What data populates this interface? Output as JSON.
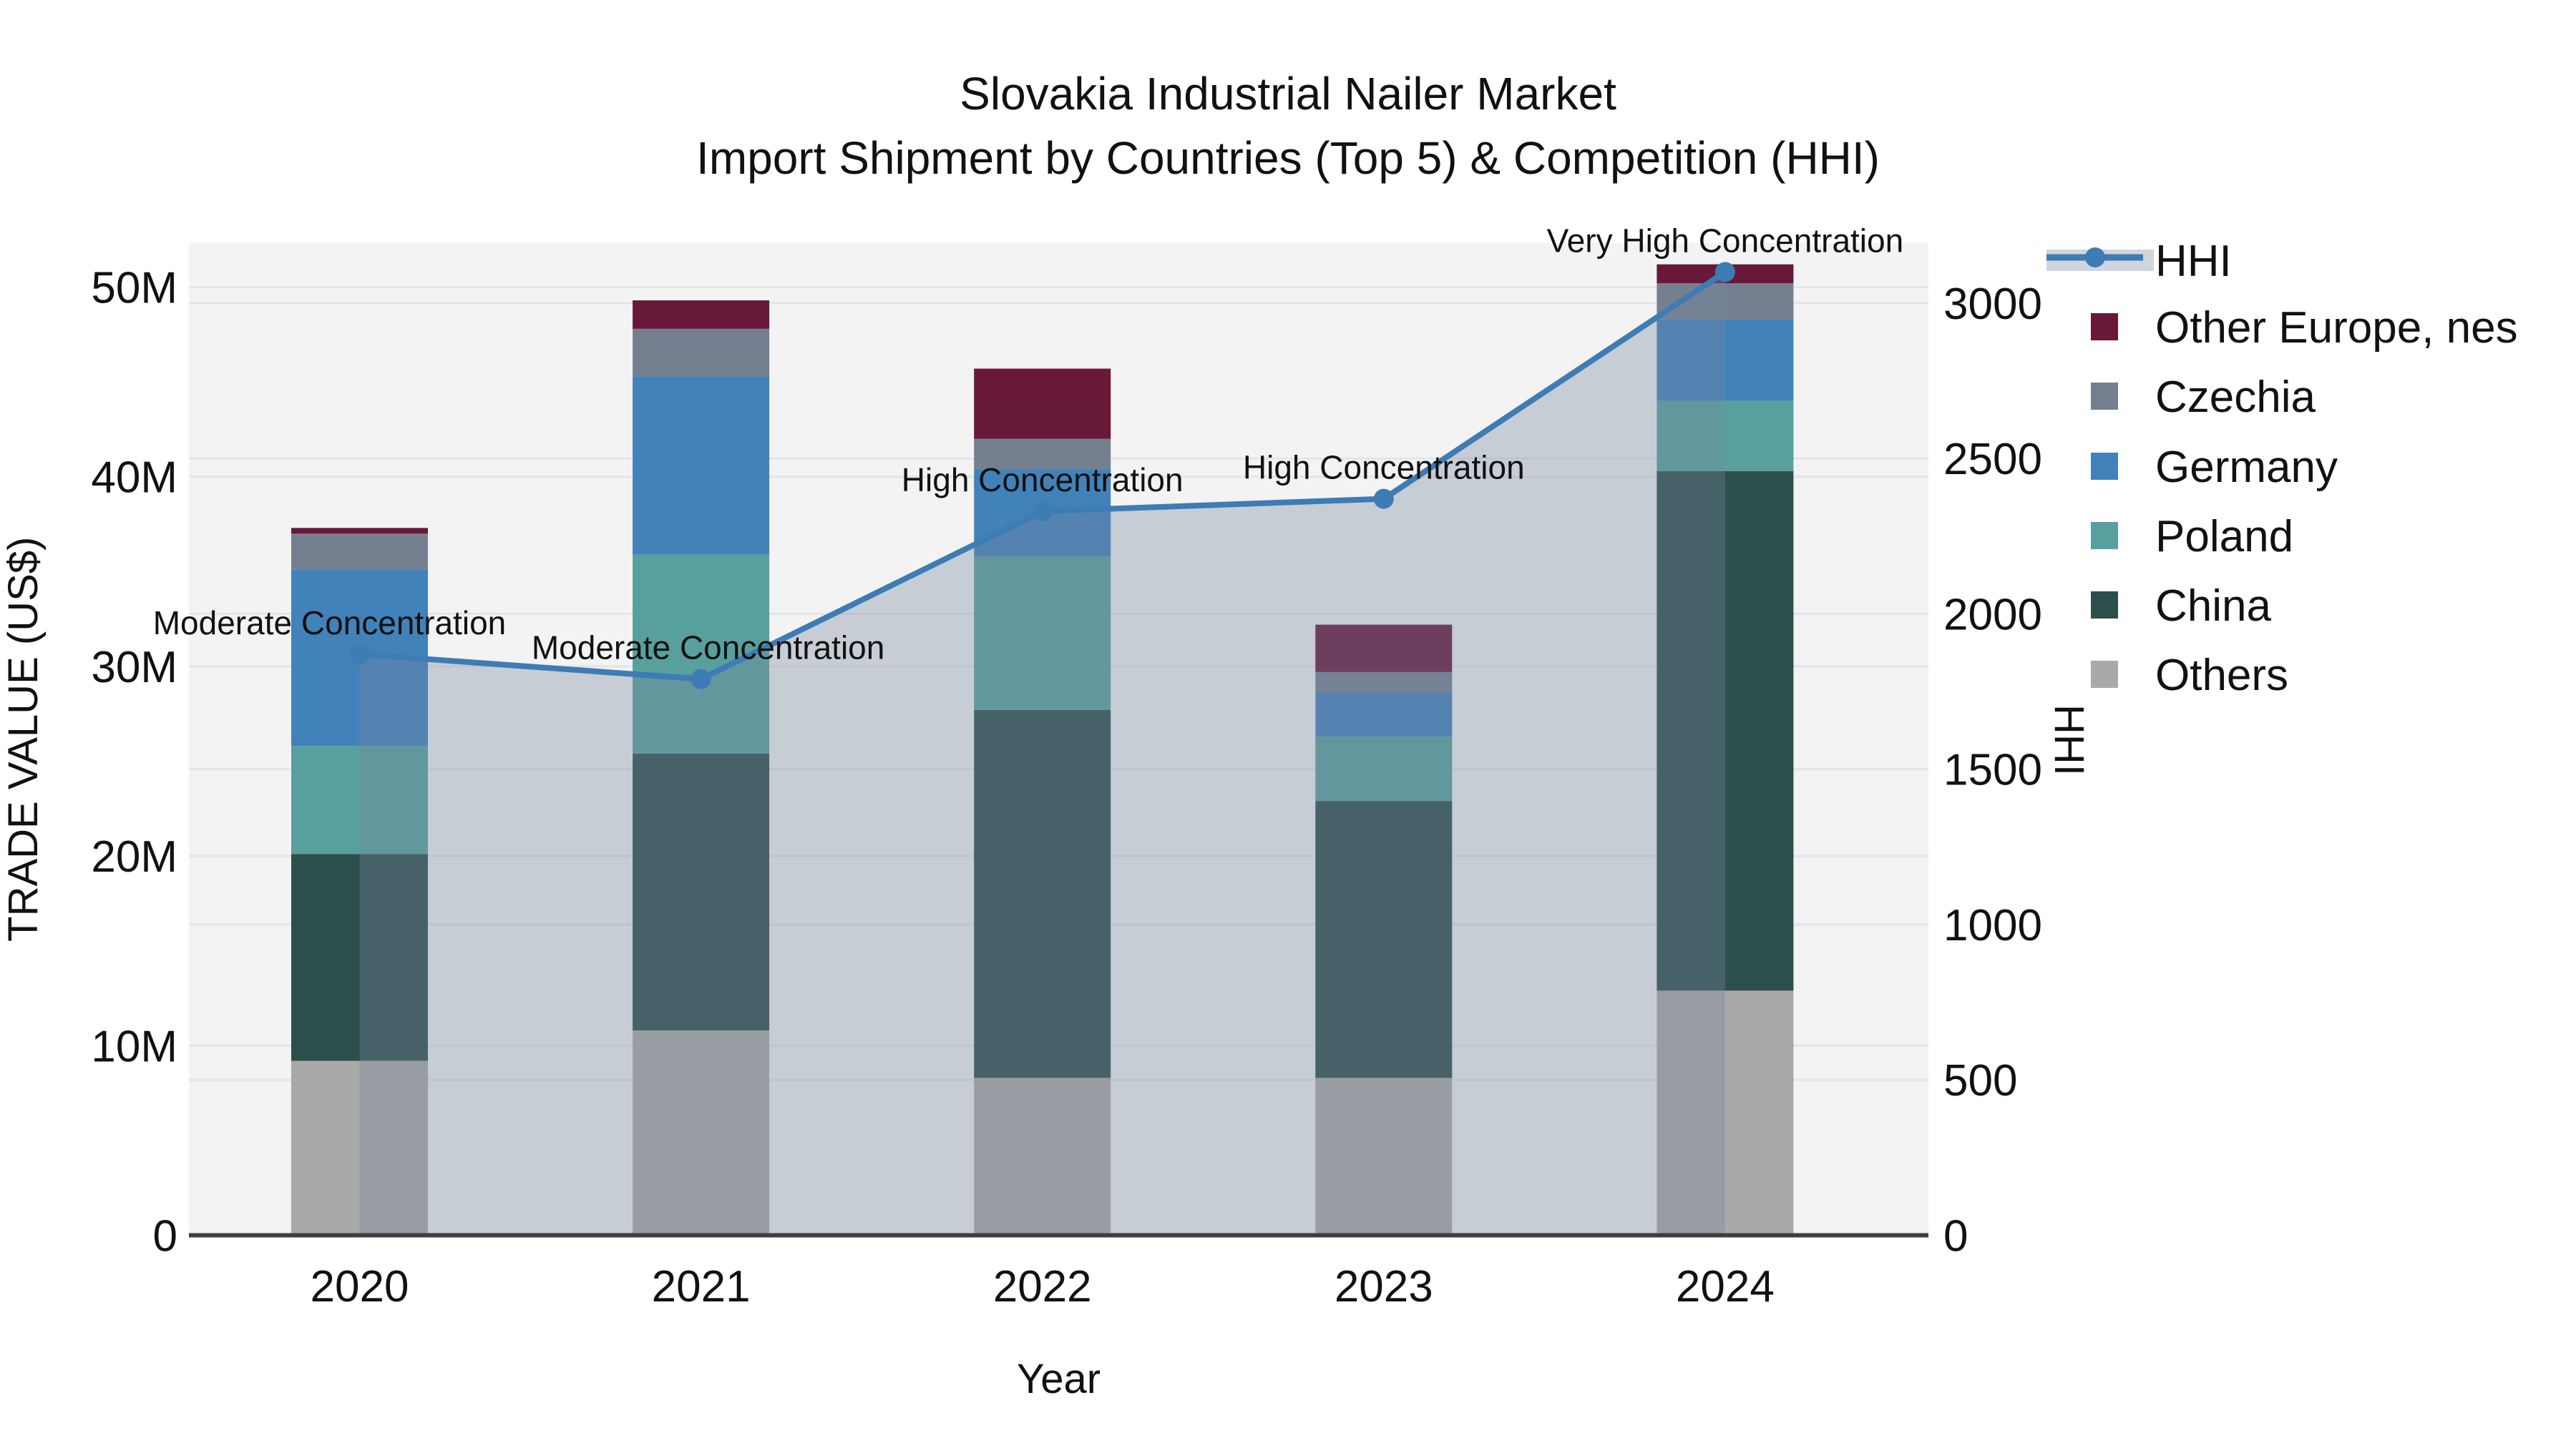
{
  "title": {
    "line1": "Slovakia Industrial Nailer Market",
    "line2": "Import Shipment by Countries (Top 5) & Competition (HHI)"
  },
  "axes": {
    "left": {
      "label": "TRADE VALUE (US$)",
      "ticks": [
        {
          "value": 0,
          "label": "0"
        },
        {
          "value": 10,
          "label": "10M"
        },
        {
          "value": 20,
          "label": "20M"
        },
        {
          "value": 30,
          "label": "30M"
        },
        {
          "value": 40,
          "label": "40M"
        },
        {
          "value": 50,
          "label": "50M"
        }
      ]
    },
    "right": {
      "label": "HHI",
      "ticks": [
        {
          "value": 0,
          "label": "0"
        },
        {
          "value": 500,
          "label": "500"
        },
        {
          "value": 1000,
          "label": "1000"
        },
        {
          "value": 1500,
          "label": "1500"
        },
        {
          "value": 2000,
          "label": "2000"
        },
        {
          "value": 2500,
          "label": "2500"
        },
        {
          "value": 3000,
          "label": "3000"
        }
      ]
    },
    "x": {
      "label": "Year"
    }
  },
  "chart_data": {
    "type": "bar",
    "subtype": "stacked-bars-with-line",
    "categories": [
      "2020",
      "2021",
      "2022",
      "2023",
      "2024"
    ],
    "stack_unit": "Million US$",
    "series": [
      {
        "name": "Others",
        "color": "#a9a9a7",
        "values": [
          9.2,
          10.8,
          8.3,
          8.3,
          12.9
        ]
      },
      {
        "name": "China",
        "color": "#2c4f4b",
        "values": [
          10.9,
          14.6,
          19.4,
          14.6,
          27.4
        ]
      },
      {
        "name": "Poland",
        "color": "#58a09d",
        "values": [
          5.7,
          10.5,
          8.1,
          3.4,
          3.7
        ]
      },
      {
        "name": "Germany",
        "color": "#4282ba",
        "values": [
          9.3,
          9.4,
          4.6,
          2.3,
          4.3
        ]
      },
      {
        "name": "Czechia",
        "color": "#74808f",
        "values": [
          1.9,
          2.5,
          1.6,
          1.1,
          1.9
        ]
      },
      {
        "name": "Other Europe, nes",
        "color": "#681839",
        "values": [
          0.3,
          1.5,
          3.7,
          2.5,
          1.0
        ]
      }
    ],
    "line_series": {
      "name": "HHI",
      "color": "#3d7cb4",
      "area_fill": "rgba(120,135,160,0.35)",
      "values": [
        1870,
        1790,
        2330,
        2370,
        3100
      ]
    },
    "annotations": [
      {
        "category": "2020",
        "text": "Moderate Concentration",
        "dx": -42
      },
      {
        "category": "2021",
        "text": "Moderate Concentration",
        "dx": 10
      },
      {
        "category": "2022",
        "text": "High Concentration",
        "dx": 0
      },
      {
        "category": "2023",
        "text": "High Concentration",
        "dx": 0
      },
      {
        "category": "2024",
        "text": "Very High Concentration",
        "dx": 0
      },
      {
        "note": "values in series are Million US$; ylim left 0-52M, ylim right 0-3200, grid on"
      }
    ],
    "ylim_left": [
      0,
      52.3
    ],
    "ylim_right": [
      0,
      3193
    ],
    "grid": true,
    "legend_position": "right-top"
  },
  "legend": {
    "entries": [
      {
        "label": "HHI",
        "type": "line",
        "color": "#3d7cb4"
      },
      {
        "label": "Other Europe, nes",
        "type": "square",
        "color": "#681839"
      },
      {
        "label": "Czechia",
        "type": "square",
        "color": "#74808f"
      },
      {
        "label": "Germany",
        "type": "square",
        "color": "#4282ba"
      },
      {
        "label": "Poland",
        "type": "square",
        "color": "#58a09d"
      },
      {
        "label": "China",
        "type": "square",
        "color": "#2c4f4b"
      },
      {
        "label": "Others",
        "type": "square",
        "color": "#a9a9a7"
      }
    ]
  },
  "colors": {
    "figure_bg": "#ffffff",
    "plot_bg": "#f2f3f2",
    "gridline": "#e4e5e7",
    "axis_line": "#3b3f44",
    "text": "#111111",
    "hhi_line": "#3d7cb4",
    "hhi_area": "rgba(120,135,160,0.35)"
  }
}
